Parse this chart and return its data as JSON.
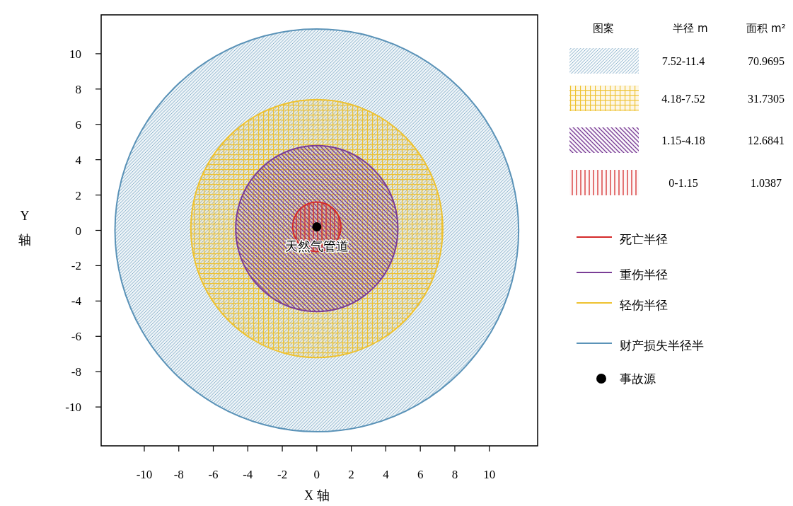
{
  "chart_data": {
    "type": "area",
    "xlabel": "X 轴",
    "ylabel": "Y 轴",
    "xlim": [
      -12.5,
      12.8
    ],
    "ylim": [
      -12.2,
      12.2
    ],
    "xticks": [
      -10,
      -8,
      -6,
      -4,
      -2,
      0,
      2,
      4,
      6,
      8,
      10
    ],
    "yticks": [
      -10,
      -8,
      -6,
      -4,
      -2,
      0,
      2,
      4,
      6,
      8,
      10
    ],
    "grid": false,
    "legend": "right",
    "series": [
      {
        "name": "死亡半径",
        "color": "#d42a2a",
        "x": [
          1.4,
          1.35,
          1.21,
          0.99,
          0.7,
          0.36,
          0,
          -0.36,
          -0.7,
          -0.99,
          -1.21,
          -1.35,
          -1.4,
          -1.35,
          -1.21,
          -0.99,
          -0.7,
          -0.36,
          0,
          0.36,
          0.7,
          0.99,
          1.21,
          1.35,
          1.4
        ],
        "values": [
          0.2,
          0.56,
          0.9,
          1.19,
          1.41,
          1.55,
          1.6,
          1.55,
          1.41,
          1.19,
          0.9,
          0.56,
          0.2,
          -0.16,
          -0.5,
          -0.79,
          -1.01,
          -1.15,
          -1.2,
          -1.15,
          -1.01,
          -0.79,
          -0.5,
          -0.16,
          0.2
        ]
      },
      {
        "name": "重伤半径",
        "color": "#7a3d96",
        "x": [
          4.7,
          4.54,
          4.07,
          3.32,
          2.35,
          1.22,
          0,
          -1.22,
          -2.35,
          -3.32,
          -4.07,
          -4.54,
          -4.7,
          -4.54,
          -4.07,
          -3.32,
          -2.35,
          -1.22,
          0,
          1.22,
          2.35,
          3.32,
          4.07,
          4.54,
          4.7
        ],
        "values": [
          0.1,
          1.32,
          2.45,
          3.42,
          4.17,
          4.64,
          4.8,
          4.64,
          4.17,
          3.42,
          2.45,
          1.32,
          0.1,
          -1.12,
          -2.25,
          -3.22,
          -3.97,
          -4.44,
          -4.6,
          -4.44,
          -3.97,
          -3.22,
          -2.25,
          -1.12,
          0.1
        ]
      },
      {
        "name": "轻伤半径",
        "color": "#eec230",
        "x": [
          7.3,
          7.05,
          6.32,
          5.16,
          3.65,
          1.89,
          0,
          -1.89,
          -3.65,
          -5.16,
          -6.32,
          -7.05,
          -7.3,
          -7.05,
          -6.32,
          -5.16,
          -3.65,
          -1.89,
          0,
          1.89,
          3.65,
          5.16,
          6.32,
          7.05,
          7.3
        ],
        "values": [
          0.1,
          1.99,
          3.75,
          5.26,
          6.42,
          7.15,
          7.4,
          7.15,
          6.42,
          5.26,
          3.75,
          1.99,
          0.1,
          -1.79,
          -3.55,
          -5.06,
          -6.22,
          -6.95,
          -7.2,
          -6.95,
          -6.22,
          -5.06,
          -3.55,
          -1.79,
          0.1
        ]
      },
      {
        "name": "财产损失半径半",
        "color": "#5b93b8",
        "x": [
          11.7,
          11.3,
          10.13,
          8.27,
          5.85,
          3.03,
          0,
          -3.03,
          -5.85,
          -8.27,
          -10.13,
          -11.3,
          -11.7,
          -11.3,
          -10.13,
          -8.27,
          -5.85,
          -3.03,
          0,
          3.03,
          5.85,
          8.27,
          10.13,
          11.3,
          11.7
        ],
        "values": [
          0,
          2.95,
          5.7,
          8.06,
          9.87,
          11.01,
          11.4,
          11.01,
          9.87,
          8.06,
          5.7,
          2.95,
          0,
          -2.95,
          -5.7,
          -8.06,
          -9.87,
          -11.01,
          -11.4,
          -11.01,
          -9.87,
          -8.06,
          -5.7,
          -2.95,
          0
        ]
      },
      {
        "name": "事故源",
        "type": "scatter",
        "marker": "circle",
        "color": "#000000",
        "x": [
          0
        ],
        "values": [
          0.2
        ]
      }
    ],
    "annotations": [
      {
        "text": "天然气管道",
        "x": 0,
        "y": 0.2
      },
      "图案",
      "半径 m",
      "面积 m²",
      "7.52-11.4",
      "70.9695",
      "4.18-7.52",
      "31.7305",
      "1.15-4.18",
      "12.6841",
      "0-1.15",
      "1.0387"
    ]
  }
}
